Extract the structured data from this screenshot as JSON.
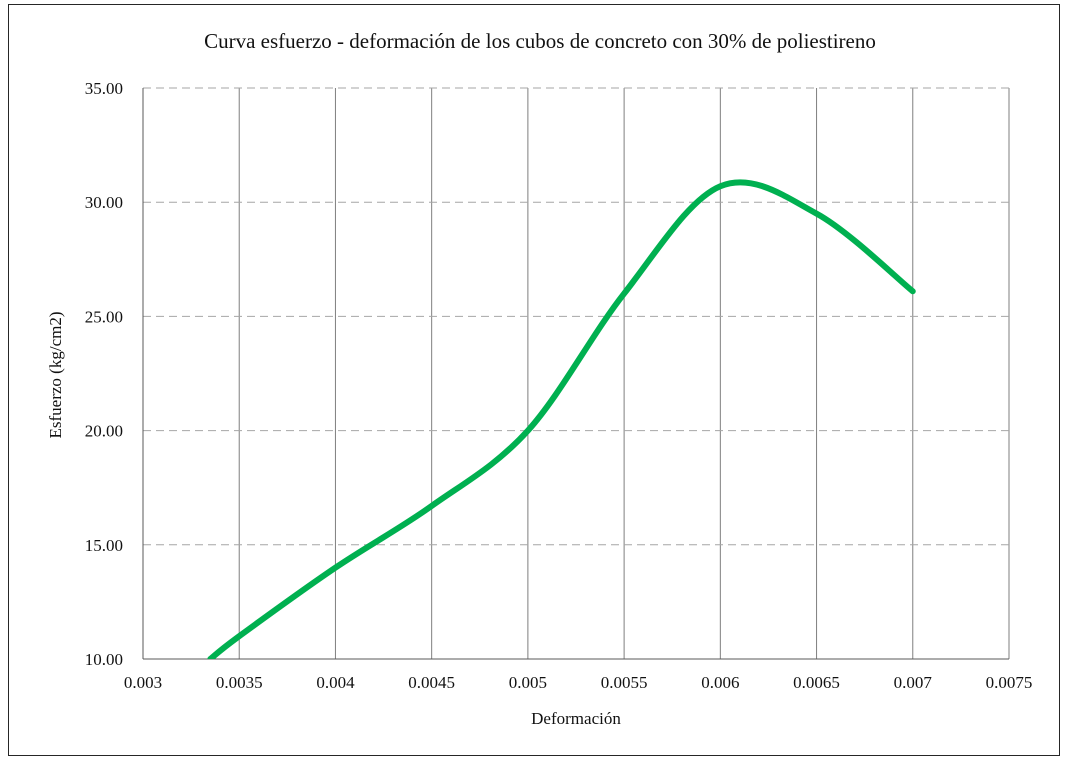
{
  "chart_data": {
    "type": "line",
    "title": "Curva esfuerzo - deformación de los cubos de concreto con 30% de poliestireno",
    "xlabel": "Deformación",
    "ylabel": "Esfuerzo (kg/cm2)",
    "xlim": [
      0.003,
      0.0075
    ],
    "ylim": [
      10,
      35
    ],
    "x_ticks": [
      "0.003",
      "0.0035",
      "0.004",
      "0.0045",
      "0.005",
      "0.0055",
      "0.006",
      "0.0065",
      "0.007",
      "0.0075"
    ],
    "y_ticks": [
      "10.00",
      "15.00",
      "20.00",
      "25.00",
      "30.00",
      "35.00"
    ],
    "grid": {
      "vertical": "solid",
      "horizontal": "dashed"
    },
    "legend": "none",
    "smooth": true,
    "series": [
      {
        "color": "#00b050",
        "x": [
          0.00335,
          0.0035,
          0.004,
          0.0045,
          0.005,
          0.0055,
          0.006,
          0.0065,
          0.007
        ],
        "y": [
          10.0,
          11.0,
          14.0,
          16.7,
          20.0,
          26.0,
          30.7,
          29.5,
          26.1
        ]
      }
    ]
  }
}
